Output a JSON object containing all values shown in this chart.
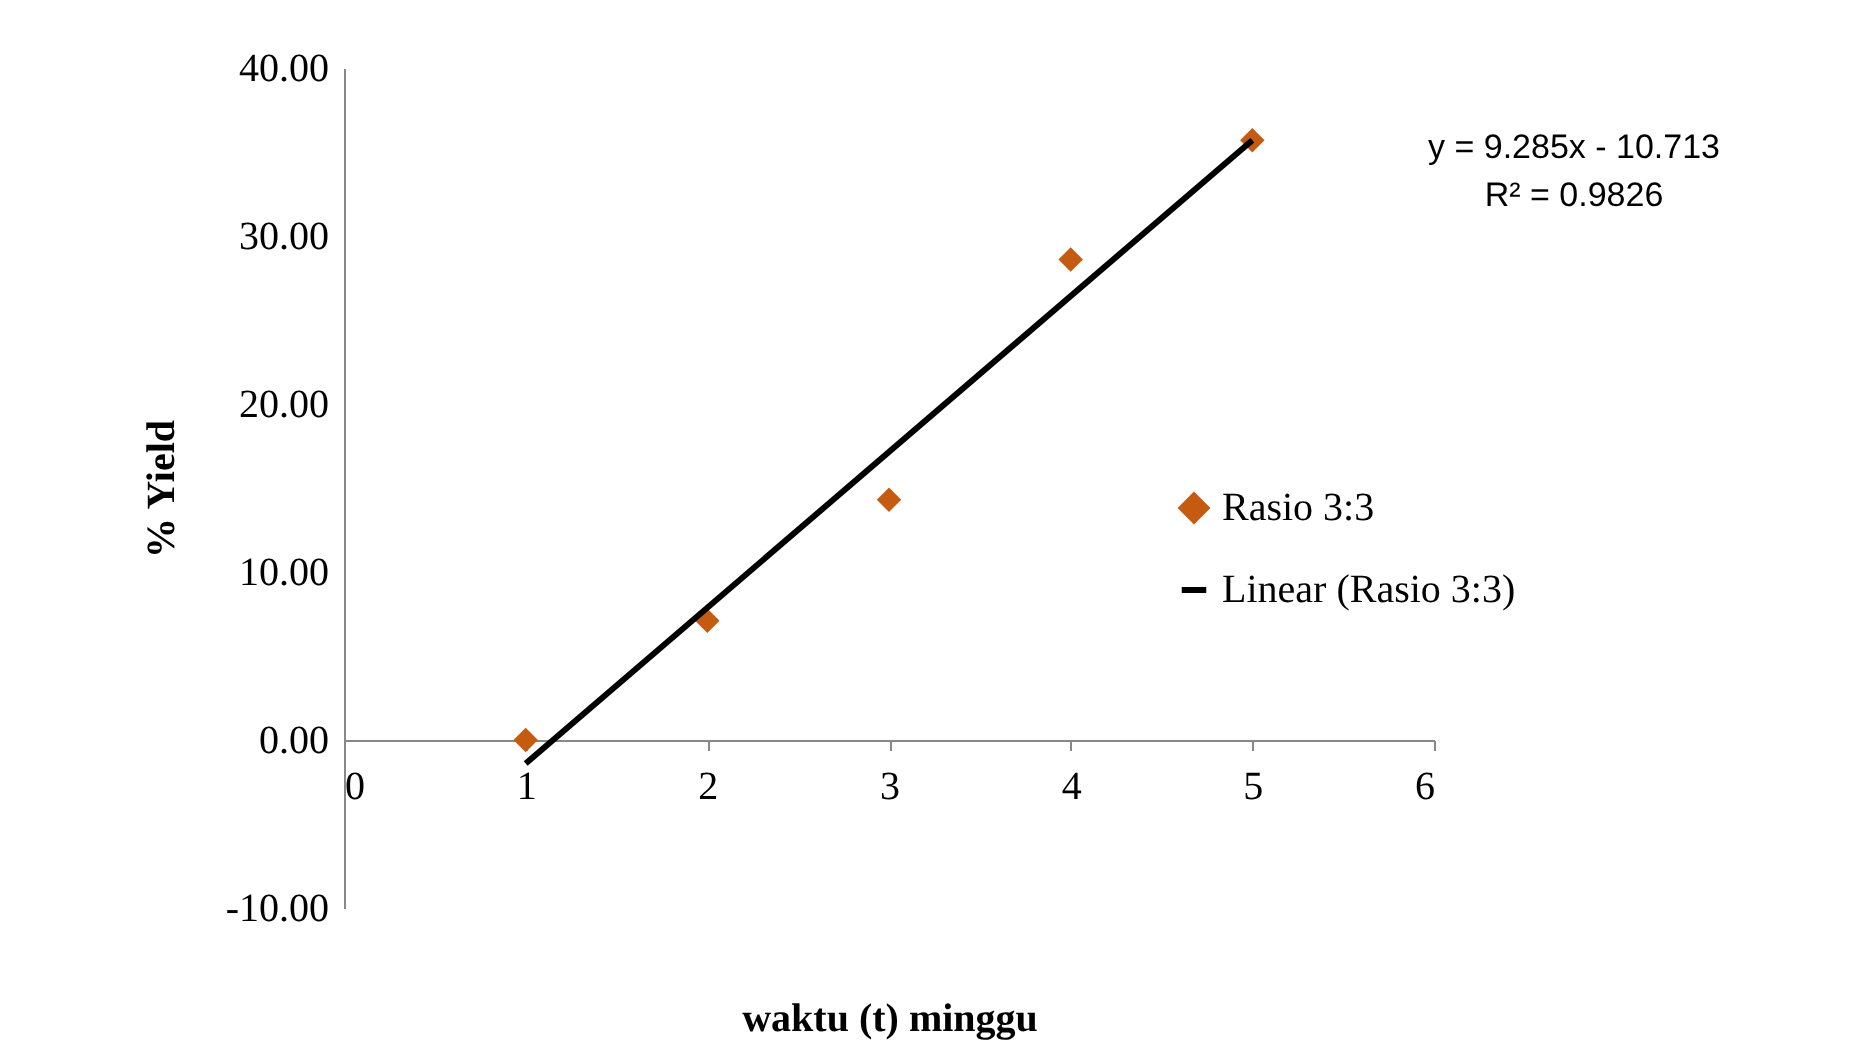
{
  "chart_data": {
    "type": "scatter",
    "xlabel": "waktu (t) minggu",
    "ylabel": "% Yield",
    "xlim": [
      0,
      6
    ],
    "xticks": [
      0,
      1,
      2,
      3,
      4,
      5,
      6
    ],
    "ylim": [
      -10,
      40
    ],
    "yticks": [
      {
        "value": -10,
        "label": "-10.00"
      },
      {
        "value": 0,
        "label": "0.00"
      },
      {
        "value": 10,
        "label": "10.00"
      },
      {
        "value": 20,
        "label": "20.00"
      },
      {
        "value": 30,
        "label": "30.00"
      },
      {
        "value": 40,
        "label": "40.00"
      }
    ],
    "x": [
      1,
      2,
      3,
      4,
      5
    ],
    "series": [
      {
        "name": "Rasio 3:3",
        "color": "#c55a11",
        "marker": "diamond",
        "values": [
          0,
          7.1,
          14.3,
          28.6,
          35.7
        ]
      },
      {
        "name": "Linear (Rasio 3:3)",
        "type": "line",
        "color": "#000000",
        "x": [
          1,
          5
        ],
        "values": [
          -1.4,
          35.7
        ]
      }
    ],
    "annotations": [
      "y = 9.285x - 10.713",
      "R² = 0.9826"
    ],
    "line_style": "solid",
    "grid": false,
    "legend": "right"
  }
}
